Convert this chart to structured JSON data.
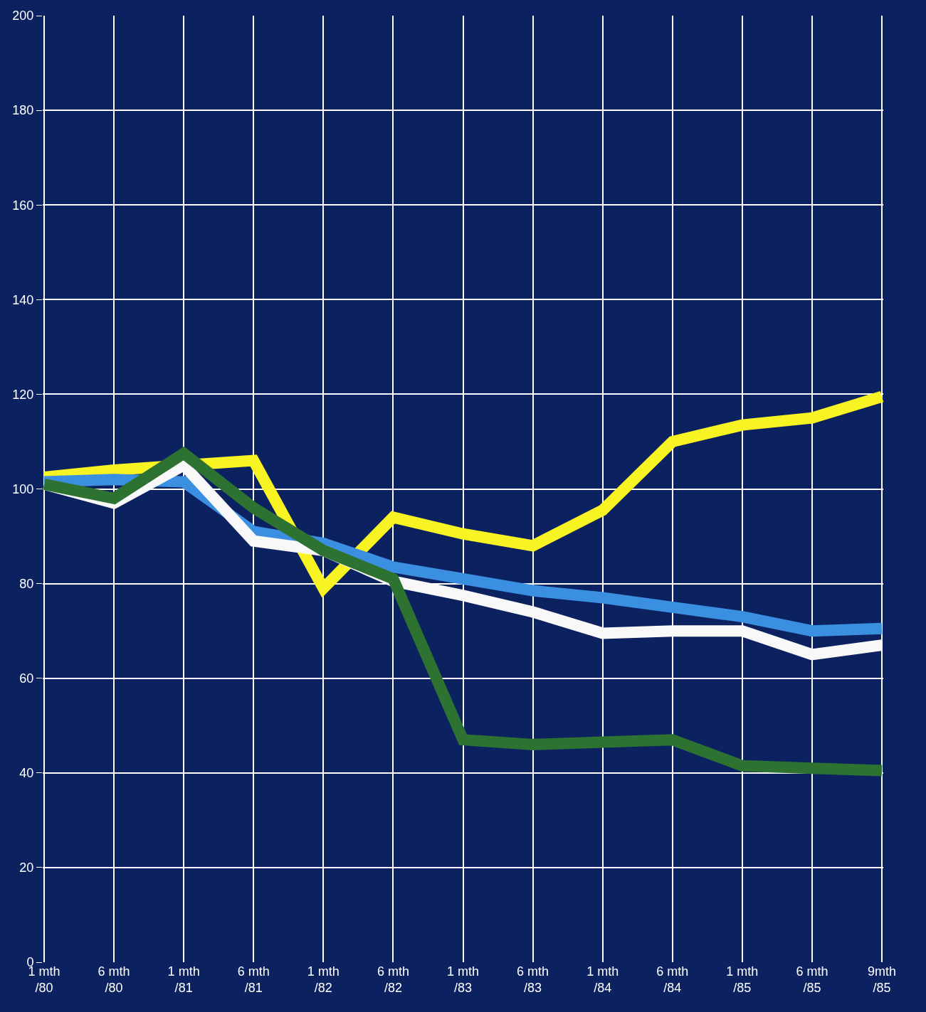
{
  "chart_data": {
    "type": "line",
    "categories": [
      "1 mth\n/80",
      "6 mth\n/80",
      "1 mth\n/81",
      "6 mth\n/81",
      "1 mth\n/82",
      "6 mth\n/82",
      "1 mth\n/83",
      "6 mth\n/83",
      "1 mth\n/84",
      "6 mth\n/84",
      "1 mth\n/85",
      "6 mth\n/85",
      "9mth\n/85"
    ],
    "series": [
      {
        "color": "#f8f322",
        "values": [
          102.5,
          104,
          105,
          106,
          79,
          94,
          90.5,
          88,
          95.5,
          110,
          113.5,
          115,
          119.5
        ]
      },
      {
        "color": "#3a8fe0",
        "values": [
          101.5,
          102,
          101.5,
          91,
          88.5,
          83.5,
          81,
          78.5,
          77,
          75,
          73,
          70,
          70.5
        ]
      },
      {
        "color": "#f8f8f8",
        "values": [
          101,
          97,
          105,
          89,
          87,
          80.5,
          77.5,
          74,
          69.5,
          70,
          70,
          65,
          67
        ]
      },
      {
        "color": "#2e7232",
        "values": [
          101,
          98,
          107.5,
          96,
          87,
          81,
          47,
          46,
          46.5,
          47,
          41.5,
          41,
          40.5
        ]
      }
    ],
    "ylim": [
      0,
      200
    ],
    "yticks": [
      0,
      20,
      40,
      60,
      80,
      100,
      120,
      140,
      160,
      180,
      200
    ],
    "grid": true,
    "marker": "none",
    "line_style": "solid"
  }
}
